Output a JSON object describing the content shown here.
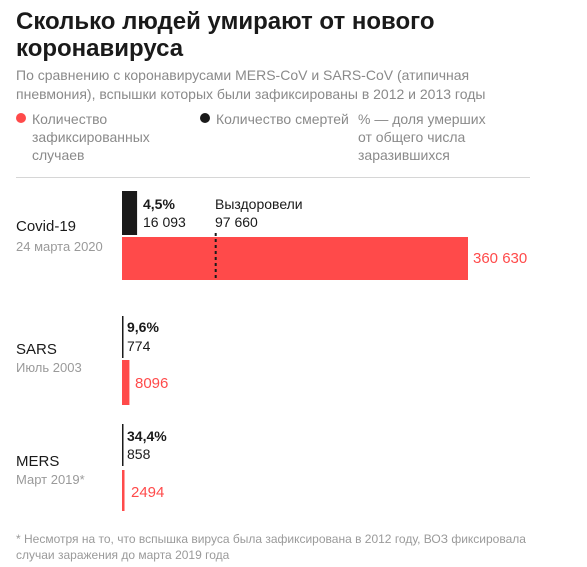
{
  "header": {
    "title": "Сколько людей умирают от нового коронавируса",
    "subtitle": "По сравнению с коронавирусами MERS-CoV и SARS-CoV (атипичная пневмония), вспышки которых были зафиксированы в 2012 и 2013 годы"
  },
  "legend": {
    "cases": "Количество зафиксированных случаев",
    "deaths": "Количество смертей",
    "percent": "% — доля умерших от общего числа заразившихся"
  },
  "colors": {
    "cases": "#ff4a4a",
    "deaths": "#1a1a1a",
    "recovered_marker": "#1a1a1a"
  },
  "chart_data": {
    "type": "bar",
    "orientation": "horizontal",
    "categories": [
      "Covid-19",
      "SARS",
      "MERS"
    ],
    "dates": [
      "24 марта 2020",
      "Июль 2003",
      "Март 2019*"
    ],
    "series": [
      {
        "name": "Количество зафиксированных случаев",
        "values": [
          360630,
          8096,
          2494
        ],
        "labels": [
          "360 630",
          "8096",
          "2494"
        ]
      },
      {
        "name": "Количество смертей",
        "values": [
          16093,
          774,
          858
        ],
        "labels": [
          "16 093",
          "774",
          "858"
        ]
      }
    ],
    "death_share_labels": [
      "4,5%",
      "9,6%",
      "34,4%"
    ],
    "recovered": {
      "label": "Выздоровели",
      "value": 97660,
      "value_label": "97 660",
      "category": "Covid-19"
    }
  },
  "footnote": "* Несмотря на то, что вспышка вируса была зафиксирована в 2012 году, ВОЗ фиксировала случаи заражения до марта 2019 года"
}
